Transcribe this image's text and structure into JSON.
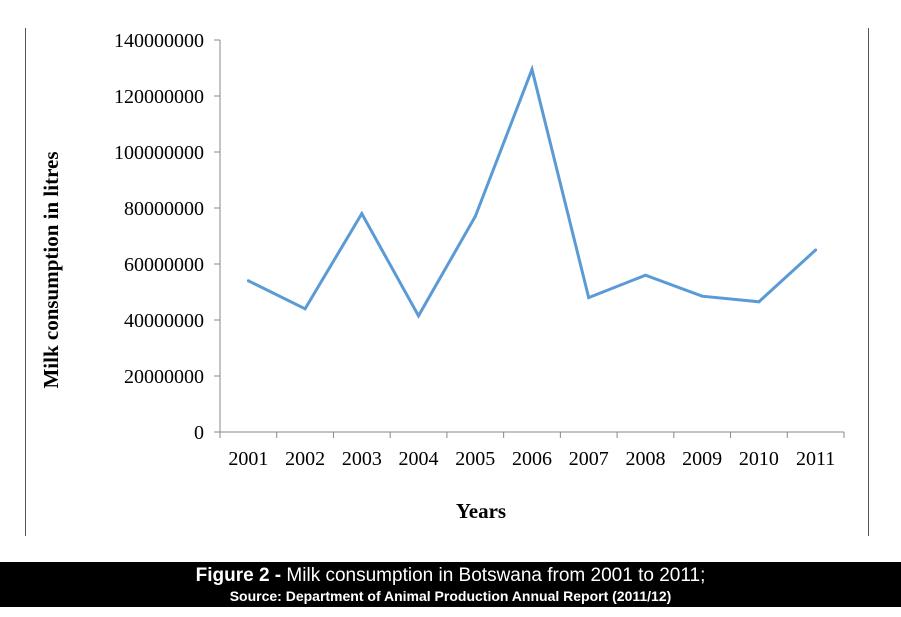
{
  "chart_data": {
    "type": "line",
    "categories": [
      "2001",
      "2002",
      "2003",
      "2004",
      "2005",
      "2006",
      "2007",
      "2008",
      "2009",
      "2010",
      "2011"
    ],
    "series": [
      {
        "values": [
          54000000,
          44000000,
          78000000,
          41500000,
          77000000,
          129500000,
          48000000,
          56000000,
          48500000,
          46500000,
          65000000
        ],
        "color": "#5b9bd5"
      }
    ],
    "ylim": [
      0,
      140000000
    ],
    "yticks": [
      "0",
      "20000000",
      "40000000",
      "60000000",
      "80000000",
      "100000000",
      "120000000",
      "140000000"
    ],
    "ylabel": "Milk consumption in litres",
    "xlabel": "Years",
    "grid": false,
    "legend": "none"
  },
  "caption": {
    "figure_label": "Figure 2 - ",
    "text": "Milk consumption in Botswana from 2001 to 2011;",
    "source": "Source: Department of Animal Production Annual Report (2011/12)"
  }
}
